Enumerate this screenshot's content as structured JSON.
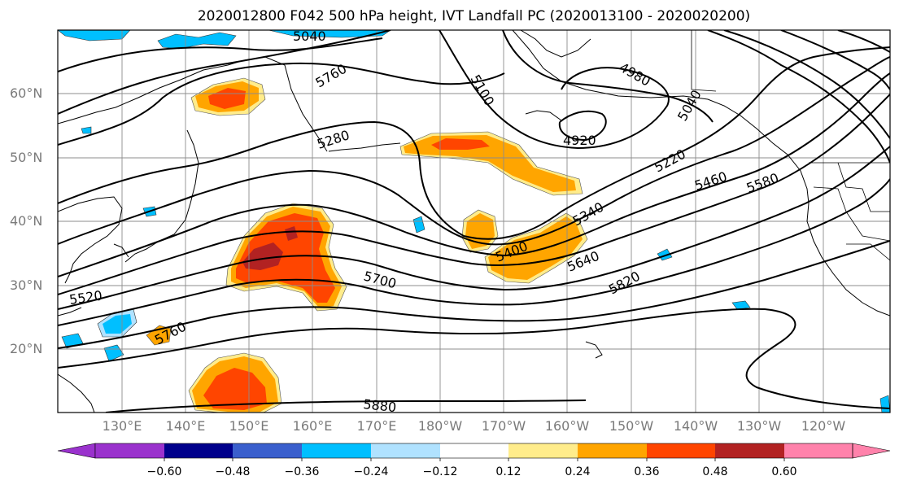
{
  "title": "2020012800 F042 500 hPa height, IVT Landfall PC (2020013100 - 2020020200)",
  "lat_labels": [
    "60°N",
    "50°N",
    "40°N",
    "30°N",
    "20°N"
  ],
  "lon_labels": [
    "130°E",
    "140°E",
    "150°E",
    "160°E",
    "170°E",
    "180°W",
    "170°W",
    "160°W",
    "150°W",
    "140°W",
    "130°W",
    "120°W"
  ],
  "contour_labels": [
    "5040",
    "5760",
    "5100",
    "4980",
    "5040",
    "5280",
    "4920",
    "5220",
    "5460",
    "5580",
    "5340",
    "5400",
    "5640",
    "5700",
    "5520",
    "5820",
    "5760",
    "5880"
  ],
  "colorbar": {
    "tick_labels": [
      "−0.60",
      "−0.48",
      "−0.36",
      "−0.24",
      "−0.12",
      "0.12",
      "0.24",
      "0.36",
      "0.48",
      "0.60"
    ],
    "colors": [
      "#9a32cd",
      "#00008b",
      "#3a5fcd",
      "#00bfff",
      "#b0e2ff",
      "#ffffff",
      "#ffec8b",
      "#ffa500",
      "#ff4500",
      "#b22222",
      "#ff82ab"
    ]
  }
}
